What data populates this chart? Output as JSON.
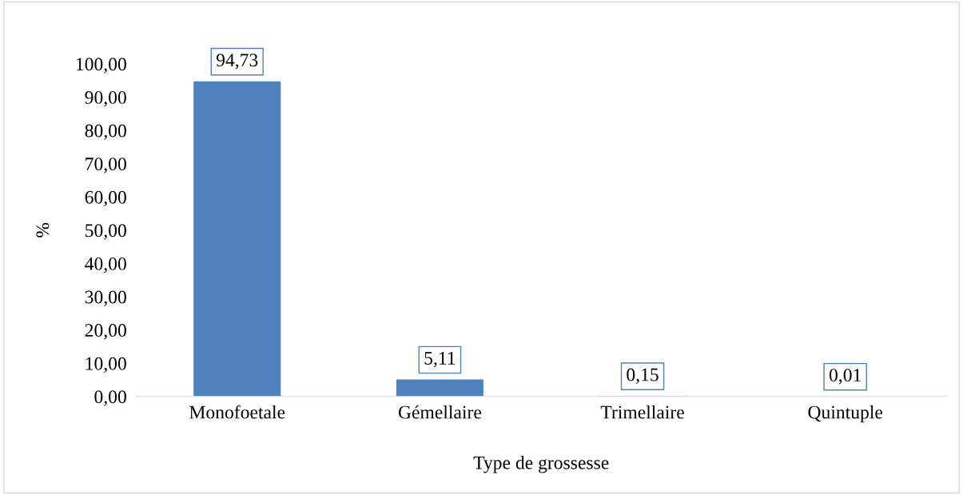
{
  "chart_data": {
    "type": "bar",
    "categories": [
      "Monofoetale",
      "Gémellaire",
      "Trimellaire",
      "Quintuple"
    ],
    "values": [
      94.73,
      5.11,
      0.15,
      0.01
    ],
    "value_labels": [
      "94,73",
      "5,11",
      "0,15",
      "0,01"
    ],
    "color": "#4f81bd",
    "xlabel": "Type de grossesse",
    "ylabel": "%",
    "ylim": [
      0,
      100
    ],
    "yticks": [
      {
        "value": 0,
        "label": "0,00"
      },
      {
        "value": 10,
        "label": "10,00"
      },
      {
        "value": 20,
        "label": "20,00"
      },
      {
        "value": 30,
        "label": "30,00"
      },
      {
        "value": 40,
        "label": "40,00"
      },
      {
        "value": 50,
        "label": "50,00"
      },
      {
        "value": 60,
        "label": "60,00"
      },
      {
        "value": 70,
        "label": "70,00"
      },
      {
        "value": 80,
        "label": "80,00"
      },
      {
        "value": 90,
        "label": "90,00"
      },
      {
        "value": 100,
        "label": "100,00"
      }
    ],
    "grid": false,
    "legend": false
  }
}
